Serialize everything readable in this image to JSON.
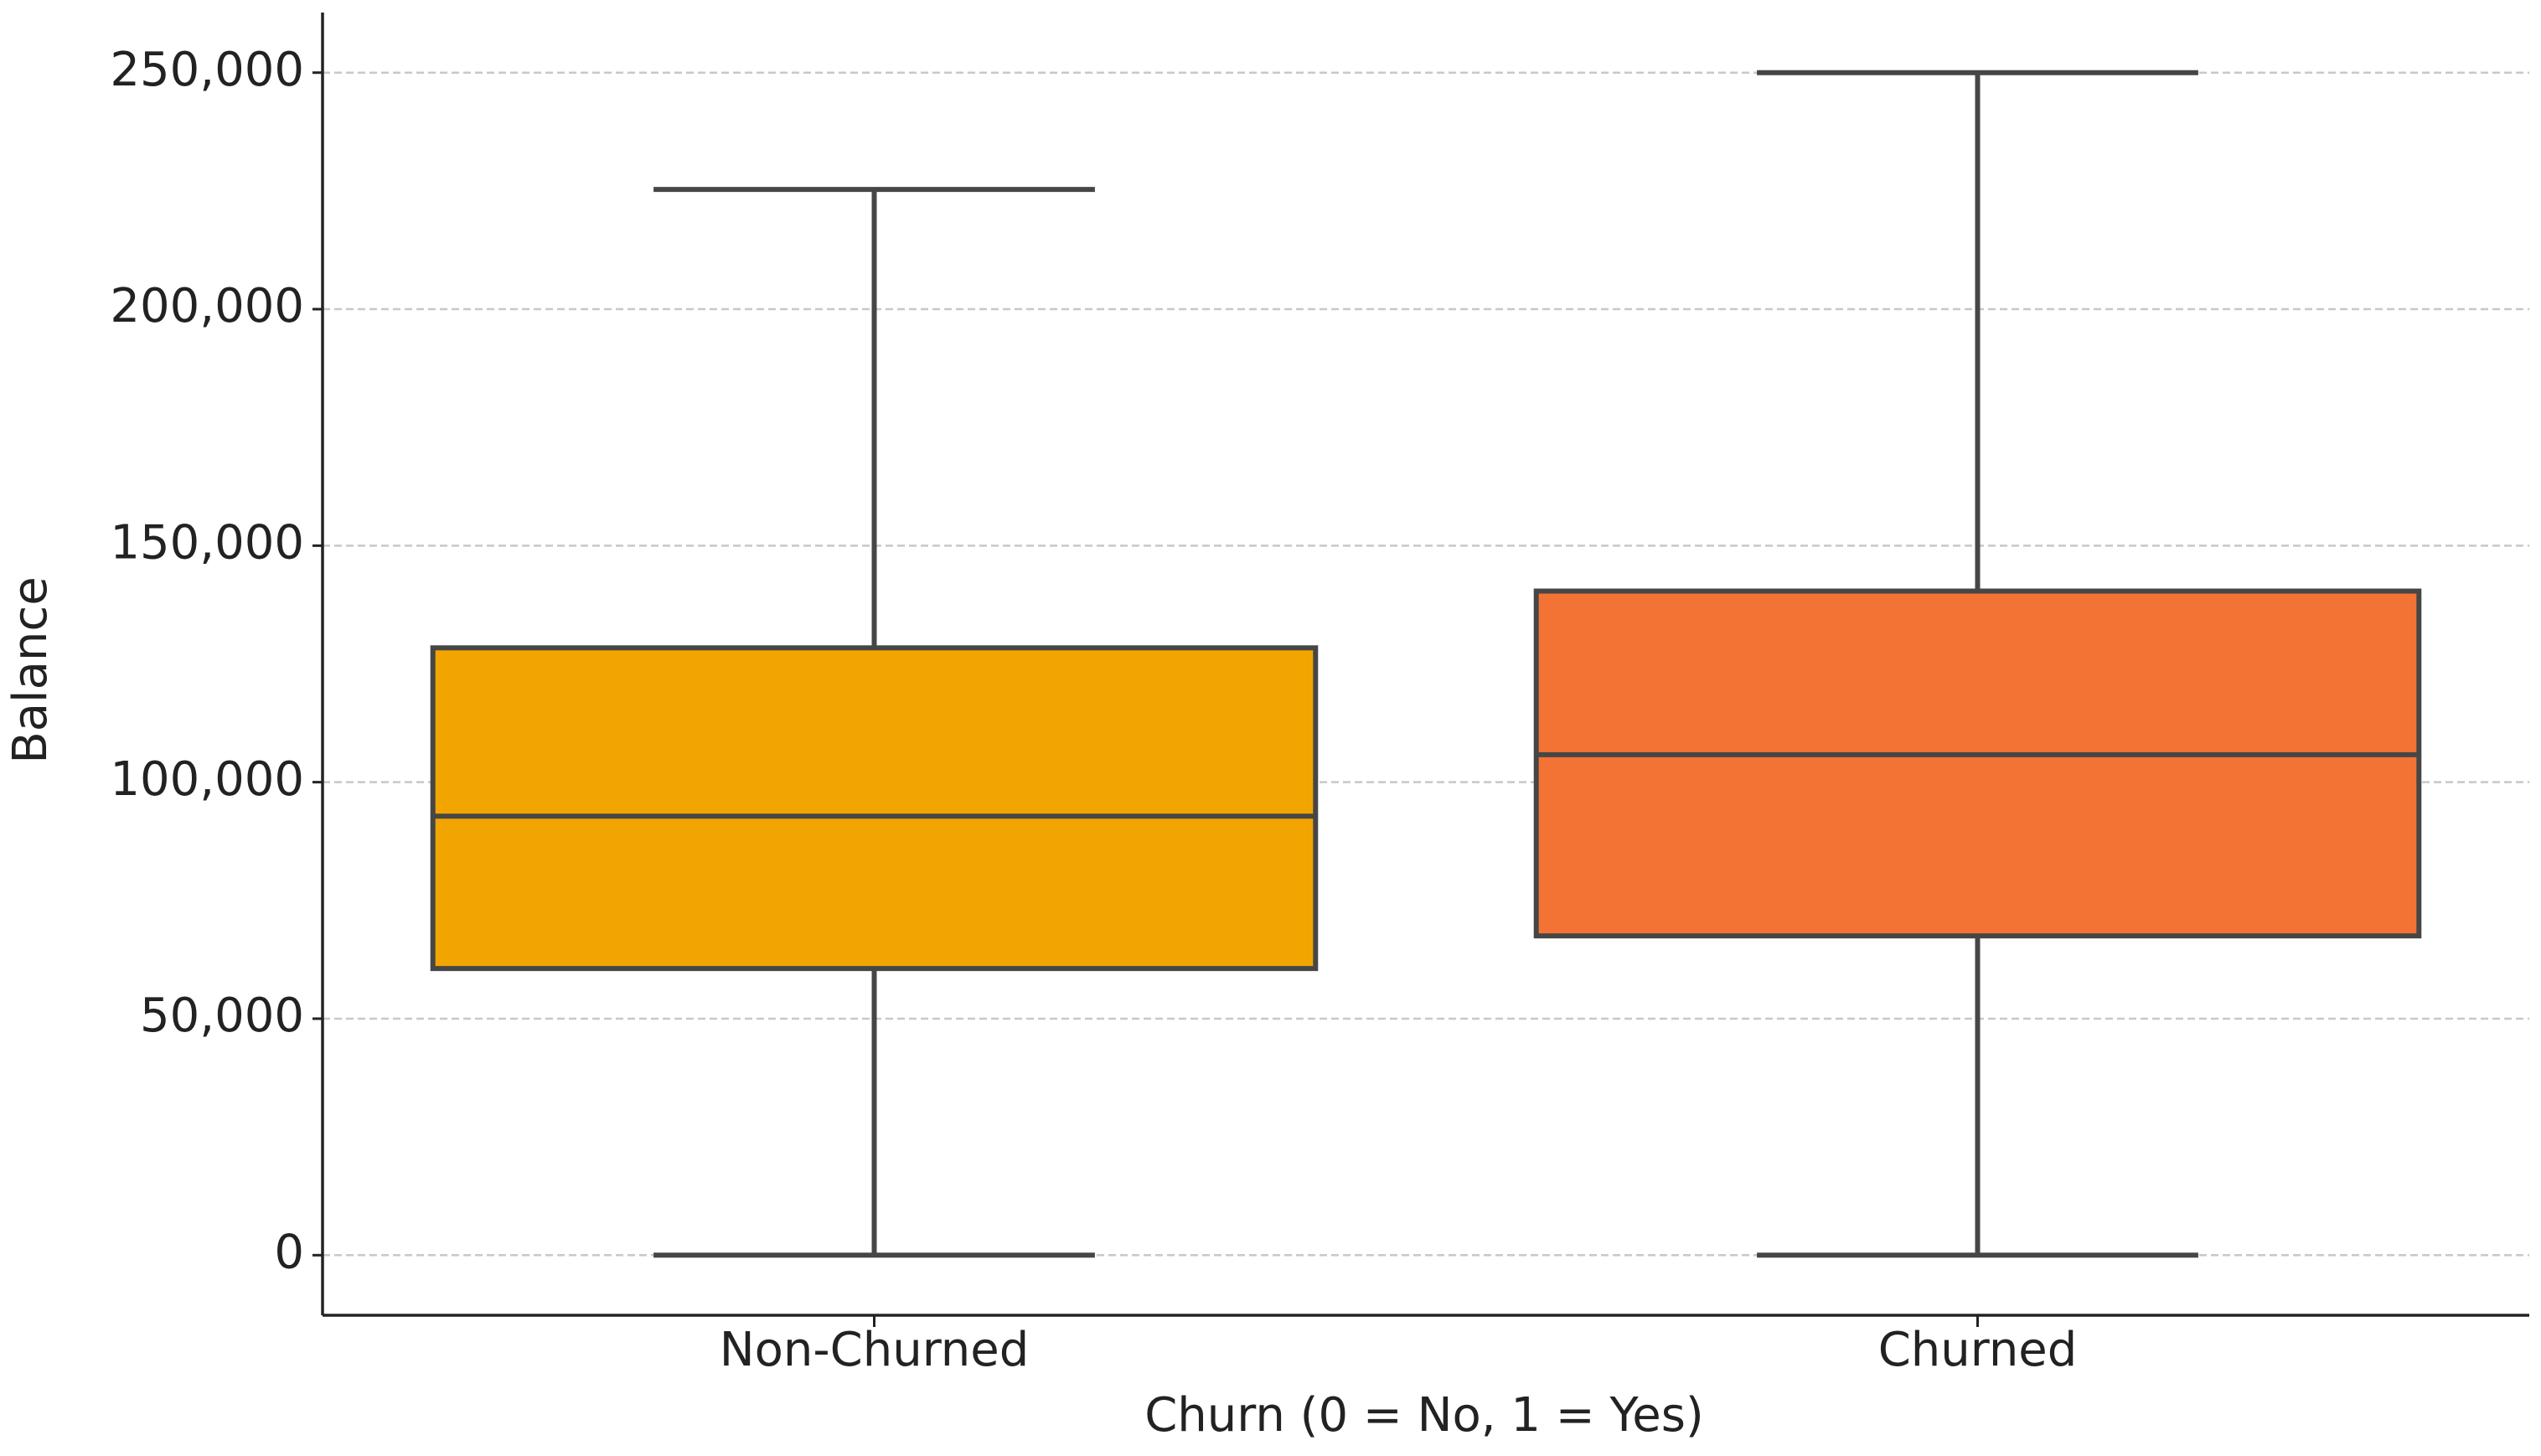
{
  "chart_data": {
    "type": "box",
    "xlabel": "Churn (0 = No, 1 = Yes)",
    "ylabel": "Balance",
    "categories": [
      "Non-Churned",
      "Churned"
    ],
    "boxes": [
      {
        "low": 0,
        "q1": 60600,
        "median": 92800,
        "q3": 128400,
        "high": 225300,
        "color": "#f2a500"
      },
      {
        "low": 0,
        "q1": 67500,
        "median": 105800,
        "q3": 140400,
        "high": 250000,
        "color": "#f37335"
      }
    ],
    "ylim": [
      -12700,
      262700
    ],
    "yticks": [
      0,
      {
        "value": 50000,
        "label": "50,000"
      },
      {
        "value": 100000,
        "label": "100,000"
      },
      {
        "value": 150000,
        "label": "150,000"
      },
      {
        "value": 200000,
        "label": "200,000"
      },
      {
        "value": 250000,
        "label": "250,000"
      }
    ],
    "grid": true
  }
}
